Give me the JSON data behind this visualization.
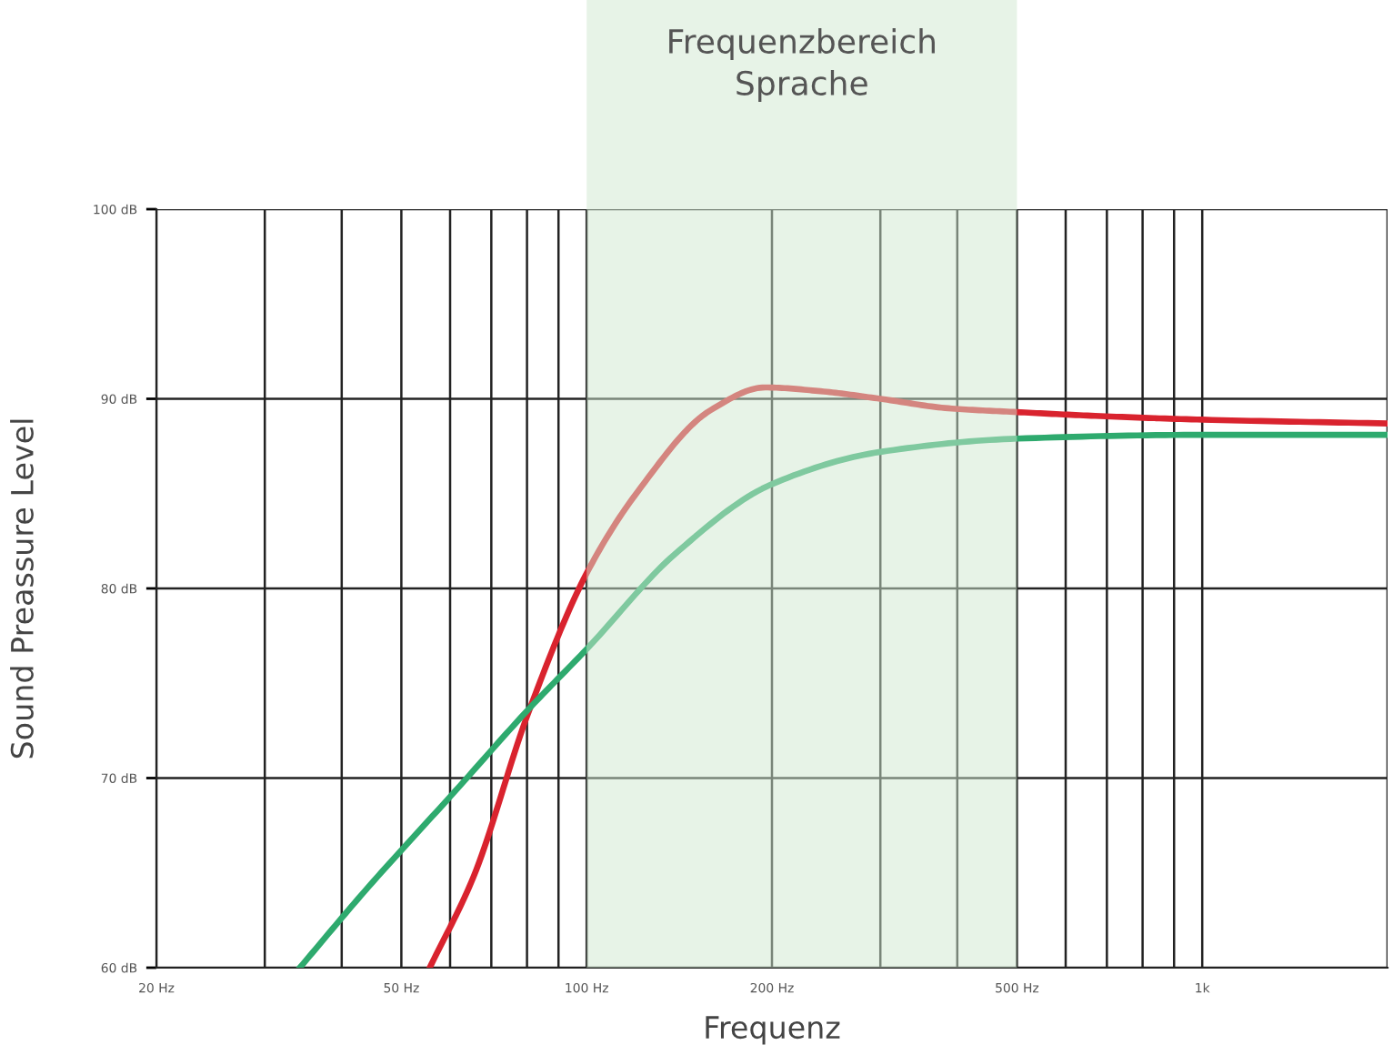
{
  "chart_data": {
    "type": "line",
    "xlabel": "Frequenz",
    "ylabel": "Sound Preassure Level",
    "log": "x",
    "xlim": [
      20,
      2000
    ],
    "ylim": [
      60,
      100
    ],
    "xticks": [
      {
        "value": 20,
        "label": "20 Hz"
      },
      {
        "value": 30,
        "label": null
      },
      {
        "value": 40,
        "label": null
      },
      {
        "value": 50,
        "label": "50 Hz"
      },
      {
        "value": 60,
        "label": null
      },
      {
        "value": 70,
        "label": null
      },
      {
        "value": 80,
        "label": null
      },
      {
        "value": 90,
        "label": null
      },
      {
        "value": 100,
        "label": "100 Hz"
      },
      {
        "value": 200,
        "label": "200 Hz"
      },
      {
        "value": 300,
        "label": null
      },
      {
        "value": 400,
        "label": null
      },
      {
        "value": 500,
        "label": "500 Hz"
      },
      {
        "value": 600,
        "label": null
      },
      {
        "value": 700,
        "label": null
      },
      {
        "value": 800,
        "label": null
      },
      {
        "value": 900,
        "label": null
      },
      {
        "value": 1000,
        "label": "1k"
      },
      {
        "value": 2000,
        "label": null
      }
    ],
    "yticks": [
      {
        "value": 60,
        "label": "60 dB"
      },
      {
        "value": 70,
        "label": "70 dB"
      },
      {
        "value": 80,
        "label": "80 dB"
      },
      {
        "value": 90,
        "label": "90 dB"
      },
      {
        "value": 100,
        "label": "100 dB"
      }
    ],
    "grid": true,
    "marker": "none",
    "line_style": "solid",
    "bands": [
      {
        "axis": "x",
        "from": 100,
        "to": 500,
        "label": "Frequenzbereich\nSprache",
        "color": "#cfe8cf"
      }
    ],
    "series": [
      {
        "color": "#d9232e",
        "x": [
          55.6,
          65.5,
          80.3,
          100,
          121,
          159,
          195,
          240,
          300,
          387,
          500,
          670,
          1000,
          2000
        ],
        "values": [
          60,
          64.8,
          73.4,
          80.8,
          85.1,
          89.4,
          90.6,
          90.4,
          90.0,
          89.5,
          89.3,
          89.1,
          88.9,
          88.7
        ]
      },
      {
        "color": "#2eaa6e",
        "x": [
          34.2,
          43.5,
          61.1,
          80.3,
          100,
          139,
          200,
          300,
          500,
          1000,
          2000
        ],
        "values": [
          60,
          64.0,
          69.3,
          73.6,
          76.8,
          81.8,
          85.5,
          87.2,
          87.9,
          88.1,
          88.1
        ]
      }
    ]
  }
}
